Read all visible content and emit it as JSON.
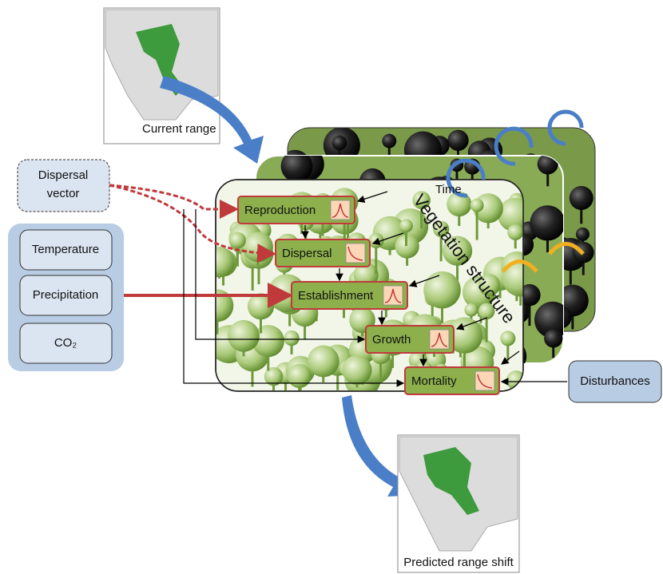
{
  "current_range": {
    "label": "Current range"
  },
  "drivers": {
    "dispersal_vector": [
      "Dispersal",
      "vector"
    ],
    "climate": [
      "Temperature",
      "Precipitation",
      "CO₂"
    ]
  },
  "time": "Time",
  "vegetation_structure": "Vegetation structure",
  "processes": [
    "Reproduction",
    "Dispersal",
    "Establishment",
    "Growth",
    "Mortality"
  ],
  "disturbances": "Disturbances",
  "predicted_range": {
    "label": "Predicted range shift"
  }
}
